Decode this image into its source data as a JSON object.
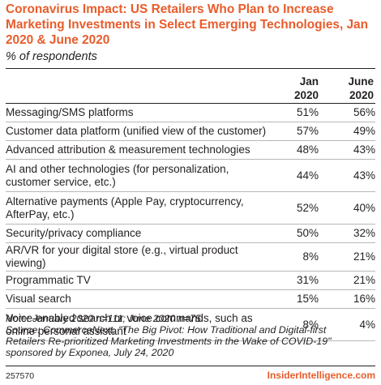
{
  "chart_data": {
    "type": "table",
    "title": "Coronavirus Impact: US Retailers Who Plan to Increase Marketing Investments in Select Emerging Technologies, Jan 2020 & June 2020",
    "subtitle": "% of respondents",
    "columns": [
      "Jan 2020",
      "June 2020"
    ],
    "rows": [
      {
        "label": "Messaging/SMS platforms",
        "jan": "51%",
        "jun": "56%"
      },
      {
        "label": "Customer data platform (unified view of the customer)",
        "jan": "57%",
        "jun": "49%"
      },
      {
        "label": "Advanced attribution & measurement technologies",
        "jan": "48%",
        "jun": "43%"
      },
      {
        "label": "AI and other technologies (for personalization, customer service, etc.)",
        "jan": "44%",
        "jun": "43%"
      },
      {
        "label": "Alternative payments (Apple Pay, cryptocurrency, AfterPay, etc.)",
        "jan": "52%",
        "jun": "40%"
      },
      {
        "label": "Security/privacy compliance",
        "jan": "50%",
        "jun": "32%"
      },
      {
        "label": "AR/VR for your digital store (e.g., virtual product viewing)",
        "jan": "8%",
        "jun": "21%"
      },
      {
        "label": "Programmatic TV",
        "jan": "31%",
        "jun": "21%"
      },
      {
        "label": "Visual search",
        "jan": "15%",
        "jun": "16%"
      },
      {
        "label": "Voice-enabled search or voice commands, such as online personal assistant",
        "jan": "8%",
        "jun": "4%"
      }
    ]
  },
  "header": {
    "col_jan_line1": "Jan",
    "col_jan_line2": "2020",
    "col_jun_line1": "June",
    "col_jun_line2": "2020"
  },
  "footer": {
    "note": "Note: January 2020 n=111; June 2020 n=75",
    "source_line1": "Source: CommerceNext, \"The Big Pivot: How Traditional and Digital-first",
    "source_line2": "Retailers Re-prioritized Marketing Investments in the Wake of COVID-19\"",
    "source_line3": "sponsored by Exponea, July 24, 2020",
    "chart_id": "257570",
    "brand": "InsiderIntelligence.com"
  },
  "colors": {
    "title": "#e85c2b",
    "text": "#231f20",
    "divider": "#b7b7b7"
  }
}
